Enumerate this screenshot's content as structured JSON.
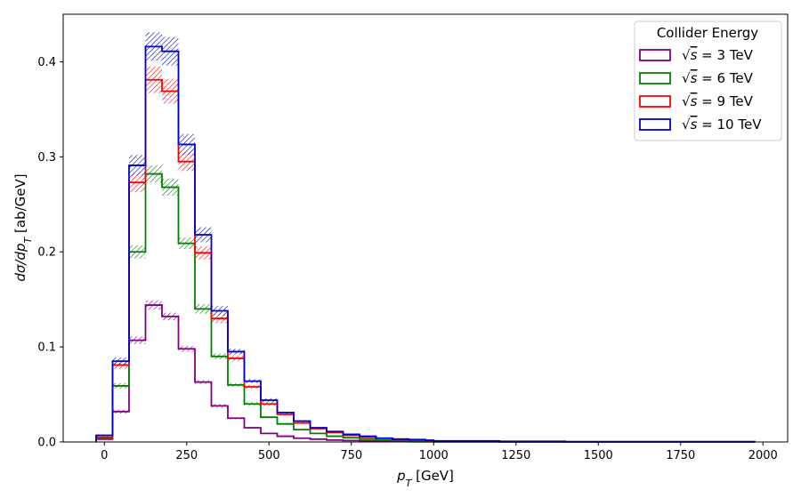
{
  "chart_data": {
    "type": "step-histogram",
    "xlabel": "p_T [GeV]",
    "ylabel": "dσ/dp_T [ab/GeV]",
    "xlim": [
      -125,
      2075
    ],
    "ylim": [
      0,
      0.45
    ],
    "x_ticks": [
      0,
      250,
      500,
      750,
      1000,
      1250,
      1500,
      1750,
      2000
    ],
    "y_ticks": [
      0.0,
      0.1,
      0.2,
      0.3,
      0.4
    ],
    "y_tick_labels": [
      "0.0",
      "0.1",
      "0.2",
      "0.3",
      "0.4"
    ],
    "grid": false,
    "legend_title": "Collider Energy",
    "legend_location": "top-right",
    "bin_edges": [
      -25,
      25,
      75,
      125,
      175,
      225,
      275,
      325,
      375,
      425,
      475,
      525,
      575,
      625,
      675,
      725,
      775,
      825,
      875,
      925,
      975,
      1000,
      1200,
      1400,
      1975
    ],
    "series": [
      {
        "name": "3 TeV",
        "label_prefix": "√s = ",
        "color": "#800080",
        "values": [
          0.003,
          0.032,
          0.107,
          0.144,
          0.132,
          0.098,
          0.063,
          0.038,
          0.025,
          0.015,
          0.009,
          0.006,
          0.004,
          0.003,
          0.002,
          0.0015,
          0.001,
          0.0007,
          0.0005,
          0.0003,
          0.0002,
          0.0001,
          5e-05,
          2e-05
        ],
        "errors": [
          0.0005,
          0.002,
          0.004,
          0.005,
          0.004,
          0.003,
          0.002,
          0.002,
          0.001,
          0.001,
          0.0005,
          0.0005,
          0.0003,
          0.0003,
          0.0002,
          0.0001,
          0.0001,
          0.0001,
          0.0001,
          0.0001,
          0.0001,
          5e-05,
          2e-05,
          1e-05
        ]
      },
      {
        "name": "6 TeV",
        "label_prefix": "√s = ",
        "color": "#008000",
        "values": [
          0.004,
          0.059,
          0.2,
          0.282,
          0.268,
          0.209,
          0.14,
          0.09,
          0.06,
          0.04,
          0.026,
          0.019,
          0.013,
          0.009,
          0.006,
          0.0045,
          0.003,
          0.002,
          0.0015,
          0.001,
          0.0008,
          0.0005,
          0.0003,
          0.0001
        ],
        "errors": [
          0.001,
          0.003,
          0.007,
          0.009,
          0.009,
          0.006,
          0.005,
          0.003,
          0.002,
          0.002,
          0.001,
          0.001,
          0.0008,
          0.0006,
          0.0005,
          0.0004,
          0.0003,
          0.0002,
          0.0002,
          0.0001,
          0.0001,
          0.0001,
          5e-05,
          3e-05
        ]
      },
      {
        "name": "9 TeV",
        "label_prefix": "√s = ",
        "color": "#ff0000",
        "values": [
          0.005,
          0.081,
          0.273,
          0.381,
          0.369,
          0.295,
          0.199,
          0.13,
          0.088,
          0.058,
          0.04,
          0.029,
          0.02,
          0.014,
          0.01,
          0.007,
          0.005,
          0.004,
          0.003,
          0.002,
          0.0015,
          0.001,
          0.0006,
          0.0002
        ],
        "errors": [
          0.001,
          0.004,
          0.01,
          0.014,
          0.013,
          0.01,
          0.007,
          0.005,
          0.003,
          0.002,
          0.002,
          0.001,
          0.001,
          0.0008,
          0.0006,
          0.0005,
          0.0004,
          0.0003,
          0.0002,
          0.0002,
          0.0001,
          0.0001,
          0.0001,
          5e-05
        ]
      },
      {
        "name": "10 TeV",
        "label_prefix": "√s = ",
        "color": "#0000cc",
        "values": [
          0.007,
          0.085,
          0.291,
          0.416,
          0.411,
          0.313,
          0.218,
          0.138,
          0.095,
          0.064,
          0.044,
          0.031,
          0.022,
          0.015,
          0.011,
          0.008,
          0.006,
          0.004,
          0.003,
          0.0025,
          0.0018,
          0.0012,
          0.0007,
          0.0003
        ],
        "errors": [
          0.001,
          0.004,
          0.011,
          0.015,
          0.015,
          0.011,
          0.008,
          0.005,
          0.003,
          0.002,
          0.002,
          0.001,
          0.001,
          0.0008,
          0.0007,
          0.0005,
          0.0004,
          0.0003,
          0.0002,
          0.0002,
          0.0002,
          0.0001,
          0.0001,
          5e-05
        ]
      }
    ]
  }
}
